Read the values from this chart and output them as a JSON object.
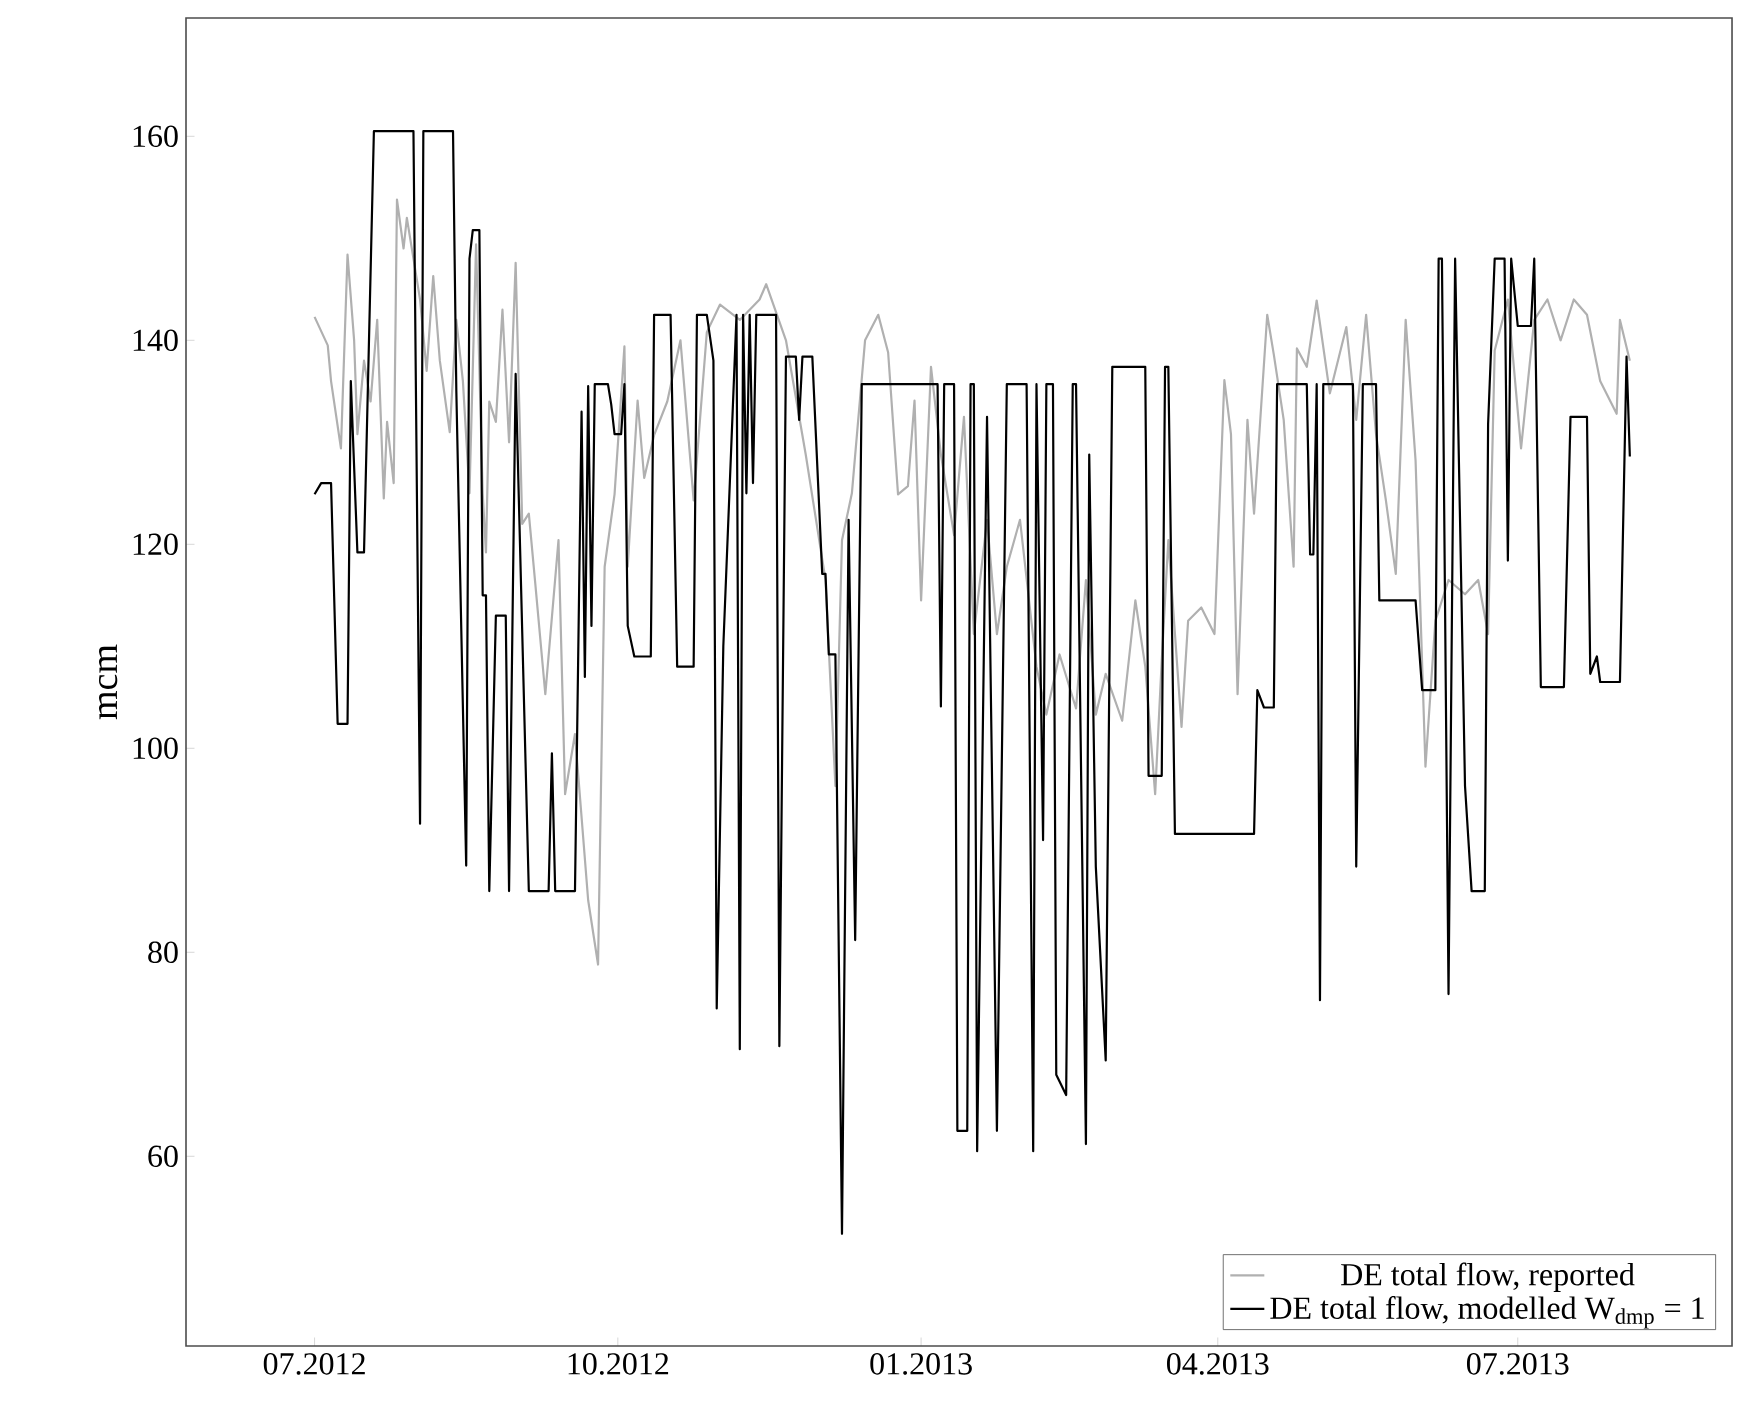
{
  "chart_data": {
    "type": "line",
    "ylabel": "mcm",
    "xlim": [
      "2012-05-23",
      "2013-09-04"
    ],
    "ylim": [
      41.4,
      171.6
    ],
    "xticks": [
      {
        "value": "2012-07-01",
        "label": "07.2012"
      },
      {
        "value": "2012-10-01",
        "label": "10.2012"
      },
      {
        "value": "2013-01-01",
        "label": "01.2013"
      },
      {
        "value": "2013-04-01",
        "label": "04.2013"
      },
      {
        "value": "2013-07-01",
        "label": "07.2013"
      }
    ],
    "yticks": [
      60,
      80,
      100,
      120,
      140,
      160
    ],
    "legend": "bottom right",
    "series": [
      {
        "name": "DE total flow, reported",
        "color": "#b0b0b0",
        "x": [
          "2012-07-01",
          "2012-07-05",
          "2012-07-06",
          "2012-07-09",
          "2012-07-11",
          "2012-07-13",
          "2012-07-14",
          "2012-07-16",
          "2012-07-18",
          "2012-07-20",
          "2012-07-22",
          "2012-07-23",
          "2012-07-25",
          "2012-07-26",
          "2012-07-28",
          "2012-07-29",
          "2012-07-31",
          "2012-08-02",
          "2012-08-04",
          "2012-08-06",
          "2012-08-08",
          "2012-08-11",
          "2012-08-13",
          "2012-08-15",
          "2012-08-17",
          "2012-08-19",
          "2012-08-21",
          "2012-08-22",
          "2012-08-23",
          "2012-08-25",
          "2012-08-27",
          "2012-08-29",
          "2012-08-31",
          "2012-09-02",
          "2012-09-04",
          "2012-09-06",
          "2012-09-09",
          "2012-09-13",
          "2012-09-15",
          "2012-09-18",
          "2012-09-22",
          "2012-09-25",
          "2012-09-27",
          "2012-09-30",
          "2012-10-03",
          "2012-10-04",
          "2012-10-07",
          "2012-10-09",
          "2012-10-12",
          "2012-10-16",
          "2012-10-20",
          "2012-10-24",
          "2012-10-28",
          "2012-11-01",
          "2012-11-07",
          "2012-11-13",
          "2012-11-15",
          "2012-11-21",
          "2012-11-27",
          "2012-12-03",
          "2012-12-06",
          "2012-12-08",
          "2012-12-11",
          "2012-12-15",
          "2012-12-19",
          "2012-12-22",
          "2012-12-25",
          "2012-12-28",
          "2012-12-30",
          "2013-01-01",
          "2013-01-04",
          "2013-01-07",
          "2013-01-11",
          "2013-01-14",
          "2013-01-17",
          "2013-01-21",
          "2013-01-24",
          "2013-01-27",
          "2013-01-31",
          "2013-02-05",
          "2013-02-08",
          "2013-02-12",
          "2013-02-17",
          "2013-02-20",
          "2013-02-23",
          "2013-02-26",
          "2013-03-03",
          "2013-03-07",
          "2013-03-10",
          "2013-03-13",
          "2013-03-15",
          "2013-03-17",
          "2013-03-21",
          "2013-03-23",
          "2013-03-27",
          "2013-03-31",
          "2013-04-03",
          "2013-04-05",
          "2013-04-07",
          "2013-04-10",
          "2013-04-12",
          "2013-04-16",
          "2013-04-18",
          "2013-04-21",
          "2013-04-24",
          "2013-04-25",
          "2013-04-28",
          "2013-05-01",
          "2013-05-05",
          "2013-05-10",
          "2013-05-13",
          "2013-05-16",
          "2013-05-19",
          "2013-05-22",
          "2013-05-25",
          "2013-05-28",
          "2013-05-31",
          "2013-06-03",
          "2013-06-06",
          "2013-06-10",
          "2013-06-15",
          "2013-06-19",
          "2013-06-22",
          "2013-06-24",
          "2013-06-28",
          "2013-07-02",
          "2013-07-06",
          "2013-07-10",
          "2013-07-14",
          "2013-07-18",
          "2013-07-22",
          "2013-07-26",
          "2013-07-31",
          "2013-08-01",
          "2013-08-04"
        ],
        "values": [
          142.3,
          139.5,
          136,
          129.4,
          148.4,
          140,
          130.8,
          138,
          134,
          142,
          124.5,
          132,
          126,
          153.8,
          149,
          152,
          148,
          144,
          137,
          146.3,
          138,
          131,
          142,
          136,
          125,
          149.4,
          125,
          119.2,
          134,
          132,
          143,
          130,
          147.6,
          122,
          123,
          116,
          105.3,
          120.4,
          95.5,
          101.4,
          85.1,
          78.8,
          117.8,
          124.9,
          139.4,
          117.8,
          134.1,
          126.5,
          130.7,
          134,
          140,
          124.3,
          140.8,
          143.5,
          142,
          144,
          145.5,
          140,
          128.8,
          116.5,
          96.3,
          120.4,
          125,
          140,
          142.5,
          138.8,
          124.9,
          125.7,
          134.1,
          114.5,
          137.4,
          128.8,
          120.9,
          132.5,
          111.2,
          122.4,
          111.2,
          117.8,
          122.4,
          108,
          103.3,
          109.2,
          103.9,
          116.5,
          103.3,
          107.3,
          102.7,
          114.5,
          108,
          95.5,
          108.6,
          120.4,
          102.1,
          112.5,
          113.8,
          111.2,
          136.1,
          130.8,
          105.3,
          132.2,
          123,
          142.5,
          138.6,
          132.2,
          117.8,
          139.2,
          137.4,
          143.9,
          134.8,
          141.3,
          132.2,
          142.5,
          130.8,
          124.3,
          117.1,
          142,
          128.2,
          98.2,
          112.5,
          116.5,
          115.1,
          116.5,
          111.2,
          139,
          144,
          129.4,
          142,
          144,
          140,
          144,
          142.5,
          136,
          132.8,
          142,
          138
        ]
      },
      {
        "name": "DE total flow, modelled W$_{dmp}$ = 1",
        "color": "#000000",
        "x": [
          "2012-07-01",
          "2012-07-03",
          "2012-07-06",
          "2012-07-08",
          "2012-07-11",
          "2012-07-12",
          "2012-07-14",
          "2012-07-16",
          "2012-07-19",
          "2012-07-31",
          "2012-08-02",
          "2012-08-03",
          "2012-08-12",
          "2012-08-13",
          "2012-08-16",
          "2012-08-17",
          "2012-08-18",
          "2012-08-20",
          "2012-08-21",
          "2012-08-22",
          "2012-08-23",
          "2012-08-25",
          "2012-08-28",
          "2012-08-29",
          "2012-08-31",
          "2012-09-04",
          "2012-09-10",
          "2012-09-11",
          "2012-09-12",
          "2012-09-18",
          "2012-09-20",
          "2012-09-21",
          "2012-09-22",
          "2012-09-23",
          "2012-09-24",
          "2012-09-28",
          "2012-09-29",
          "2012-09-30",
          "2012-10-02",
          "2012-10-03",
          "2012-10-04",
          "2012-10-06",
          "2012-10-11",
          "2012-10-12",
          "2012-10-17",
          "2012-10-19",
          "2012-10-24",
          "2012-10-25",
          "2012-10-28",
          "2012-10-30",
          "2012-10-31",
          "2012-11-02",
          "2012-11-06",
          "2012-11-07",
          "2012-11-08",
          "2012-11-09",
          "2012-11-10",
          "2012-11-11",
          "2012-11-12",
          "2012-11-13",
          "2012-11-18",
          "2012-11-19",
          "2012-11-21",
          "2012-11-24",
          "2012-11-25",
          "2012-11-26",
          "2012-11-29",
          "2012-12-02",
          "2012-12-03",
          "2012-12-04",
          "2012-12-06",
          "2012-12-08",
          "2012-12-10",
          "2012-12-12",
          "2012-12-14",
          "2013-01-06",
          "2013-01-07",
          "2013-01-08",
          "2013-01-11",
          "2013-01-12",
          "2013-01-15",
          "2013-01-16",
          "2013-01-17",
          "2013-01-18",
          "2013-01-21",
          "2013-01-24",
          "2013-01-27",
          "2013-02-02",
          "2013-02-04",
          "2013-02-05",
          "2013-02-07",
          "2013-02-08",
          "2013-02-10",
          "2013-02-11",
          "2013-02-14",
          "2013-02-16",
          "2013-02-17",
          "2013-02-20",
          "2013-02-21",
          "2013-02-23",
          "2013-02-26",
          "2013-02-28",
          "2013-03-10",
          "2013-03-11",
          "2013-03-15",
          "2013-03-16",
          "2013-03-17",
          "2013-03-19",
          "2013-04-12",
          "2013-04-13",
          "2013-04-15",
          "2013-04-18",
          "2013-04-19",
          "2013-04-28",
          "2013-04-29",
          "2013-04-30",
          "2013-05-01",
          "2013-05-02",
          "2013-05-03",
          "2013-05-12",
          "2013-05-13",
          "2013-05-15",
          "2013-05-19",
          "2013-05-20",
          "2013-05-31",
          "2013-06-02",
          "2013-06-06",
          "2013-06-07",
          "2013-06-08",
          "2013-06-10",
          "2013-06-12",
          "2013-06-15",
          "2013-06-17",
          "2013-06-21",
          "2013-06-22",
          "2013-06-24",
          "2013-06-27",
          "2013-06-28",
          "2013-06-29",
          "2013-07-01",
          "2013-07-05",
          "2013-07-06",
          "2013-07-08",
          "2013-07-15",
          "2013-07-17",
          "2013-07-22",
          "2013-07-23",
          "2013-07-25",
          "2013-07-26",
          "2013-08-01",
          "2013-08-03",
          "2013-08-04"
        ],
        "values": [
          124.9,
          126,
          126,
          102.4,
          102.4,
          136,
          119.2,
          119.2,
          160.5,
          160.5,
          92.6,
          160.5,
          160.5,
          135.1,
          88.5,
          148,
          150.8,
          150.8,
          115,
          115,
          86,
          113,
          113,
          86,
          136.7,
          86,
          86,
          99.5,
          86,
          86,
          133,
          107,
          135.5,
          112,
          135.7,
          135.7,
          133.7,
          130.8,
          130.8,
          135.7,
          112,
          109,
          109,
          142.5,
          142.5,
          108,
          108,
          142.5,
          142.5,
          138,
          74.5,
          110,
          142.5,
          70.5,
          142.5,
          125,
          142.5,
          126,
          142.5,
          142.5,
          142.5,
          70.8,
          138.4,
          138.4,
          132.2,
          138.4,
          138.4,
          117.1,
          117.1,
          109.2,
          109.2,
          52.4,
          122.4,
          81.2,
          135.7,
          135.7,
          104.1,
          135.7,
          135.7,
          62.5,
          62.5,
          135.7,
          135.7,
          60.5,
          132.5,
          62.5,
          135.7,
          135.7,
          60.5,
          135.7,
          91,
          135.7,
          135.7,
          68,
          66,
          135.7,
          135.7,
          61.2,
          128.8,
          88.4,
          69.4,
          137.4,
          137.4,
          97.3,
          97.3,
          137.4,
          137.4,
          91.6,
          91.6,
          105.7,
          104,
          104,
          135.7,
          135.7,
          119,
          119,
          135.7,
          75.3,
          135.7,
          135.7,
          88.4,
          135.7,
          135.7,
          114.5,
          114.5,
          105.7,
          105.7,
          148,
          148,
          75.9,
          148,
          96.3,
          86,
          86,
          131.8,
          148,
          148,
          118.4,
          148,
          141.4,
          141.4,
          148,
          106,
          106,
          132.5,
          132.5,
          107.3,
          109,
          106.5,
          106.5,
          138.4,
          128.6
        ]
      }
    ]
  }
}
